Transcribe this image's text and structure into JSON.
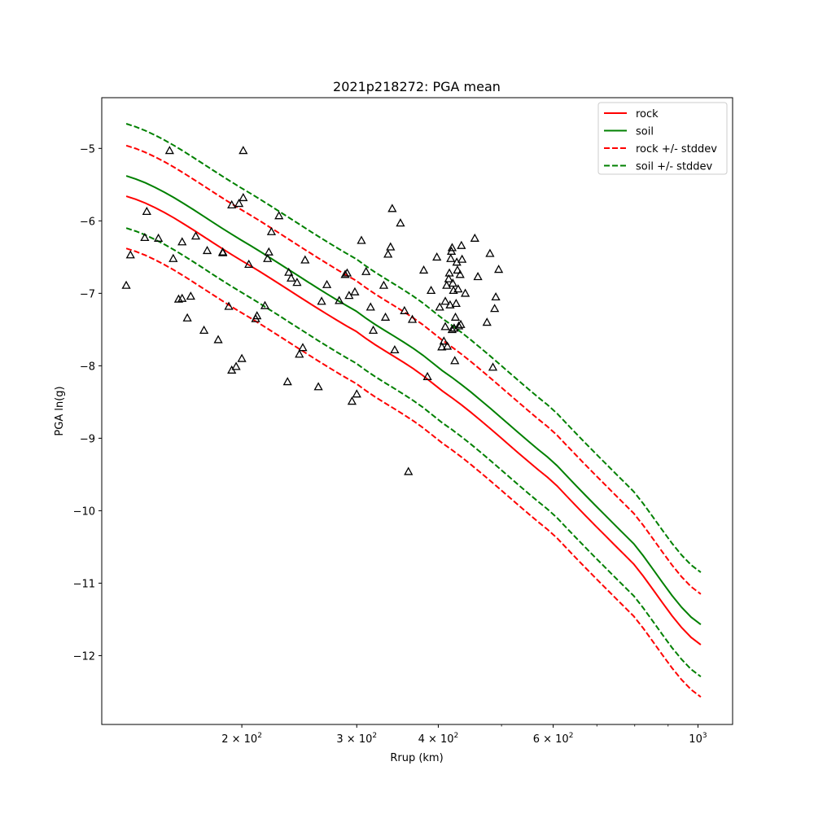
{
  "chart_data": {
    "type": "scatter",
    "title": "2021p218272: PGA mean",
    "xlabel": "Rrup (km)",
    "ylabel": "PGA ln(g)",
    "xscale": "log",
    "xlim": [
      122,
      1130
    ],
    "ylim": [
      -12.95,
      -4.3
    ],
    "x_ticks": [
      {
        "value": 200,
        "label": "2 × 10",
        "exp": "2"
      },
      {
        "value": 300,
        "label": "3 × 10",
        "exp": "2"
      },
      {
        "value": 400,
        "label": "4 × 10",
        "exp": "2"
      },
      {
        "value": 600,
        "label": "6 × 10",
        "exp": "2"
      },
      {
        "value": 1000,
        "label": "10",
        "exp": "3"
      }
    ],
    "x_minor_ticks": [
      500,
      700,
      800,
      900
    ],
    "y_ticks": [
      {
        "value": -5,
        "label": "−5"
      },
      {
        "value": -6,
        "label": "−6"
      },
      {
        "value": -7,
        "label": "−7"
      },
      {
        "value": -8,
        "label": "−8"
      },
      {
        "value": -9,
        "label": "−9"
      },
      {
        "value": -10,
        "label": "−10"
      },
      {
        "value": -11,
        "label": "−11"
      },
      {
        "value": -12,
        "label": "−12"
      }
    ],
    "grid": false,
    "legend_position": "top-right",
    "series": [
      {
        "name": "rock",
        "kind": "line",
        "color": "#ff0000",
        "dashed": false,
        "x": [
          133,
          200,
          300,
          400,
          600,
          800,
          1010
        ],
        "y": [
          -5.66,
          -6.55,
          -7.53,
          -8.31,
          -9.6,
          -10.75,
          -11.85
        ]
      },
      {
        "name": "soil",
        "kind": "line",
        "color": "#008000",
        "dashed": false,
        "x": [
          133,
          200,
          300,
          400,
          600,
          800,
          1010
        ],
        "y": [
          -5.38,
          -6.27,
          -7.25,
          -8.03,
          -9.32,
          -10.47,
          -11.57
        ]
      },
      {
        "name": "rock +/- stddev",
        "kind": "band",
        "color": "#ff0000",
        "dashed": true,
        "x": [
          133,
          200,
          300,
          400,
          600,
          800,
          1010
        ],
        "upper": [
          -4.96,
          -5.85,
          -6.83,
          -7.61,
          -8.9,
          -10.05,
          -11.15
        ],
        "lower": [
          -6.38,
          -7.27,
          -8.25,
          -9.03,
          -10.32,
          -11.47,
          -12.57
        ]
      },
      {
        "name": "soil +/- stddev",
        "kind": "band",
        "color": "#008000",
        "dashed": true,
        "x": [
          133,
          200,
          300,
          400,
          600,
          800,
          1010
        ],
        "upper": [
          -4.66,
          -5.55,
          -6.53,
          -7.31,
          -8.6,
          -9.75,
          -10.85
        ],
        "lower": [
          -6.1,
          -6.99,
          -7.97,
          -8.75,
          -10.04,
          -11.19,
          -12.29
        ]
      }
    ],
    "points": {
      "marker": "triangle",
      "color": "#000000",
      "x": [
        133,
        135,
        142,
        143,
        149,
        155,
        157,
        160,
        162,
        162,
        165,
        167,
        170,
        175,
        177,
        184,
        187,
        187,
        191,
        193,
        193,
        196,
        198,
        200,
        201,
        201,
        205,
        210,
        211,
        217,
        219,
        220,
        222,
        228,
        235,
        236,
        238,
        243,
        245,
        248,
        250,
        262,
        265,
        270,
        282,
        288,
        290,
        292,
        295,
        298,
        300,
        305,
        310,
        315,
        318,
        330,
        332,
        335,
        338,
        340,
        343,
        350,
        355,
        360,
        365,
        380,
        385,
        390,
        398,
        402,
        405,
        408,
        410,
        410,
        412,
        413,
        415,
        416,
        417,
        418,
        419,
        420,
        420,
        421,
        422,
        423,
        424,
        425,
        426,
        427,
        428,
        429,
        430,
        432,
        433,
        434,
        435,
        440,
        455,
        460,
        475,
        480,
        485,
        488,
        490,
        495
      ],
      "y": [
        -6.89,
        -6.47,
        -6.23,
        -5.87,
        -6.24,
        -5.03,
        -6.52,
        -7.08,
        -7.07,
        -6.29,
        -7.34,
        -7.04,
        -6.21,
        -7.51,
        -6.41,
        -7.64,
        -6.44,
        -6.43,
        -7.18,
        -5.78,
        -8.06,
        -8.01,
        -5.76,
        -7.9,
        -5.03,
        -5.68,
        -6.6,
        -7.35,
        -7.31,
        -7.17,
        -6.52,
        -6.43,
        -6.15,
        -5.93,
        -8.22,
        -6.71,
        -6.79,
        -6.85,
        -7.84,
        -7.75,
        -6.54,
        -8.29,
        -7.11,
        -6.88,
        -7.1,
        -6.74,
        -6.72,
        -7.03,
        -8.49,
        -6.98,
        -8.39,
        -6.27,
        -6.7,
        -7.19,
        -7.51,
        -6.89,
        -7.33,
        -6.46,
        -6.36,
        -5.83,
        -7.78,
        -6.03,
        -7.24,
        -9.46,
        -7.36,
        -6.68,
        -8.15,
        -6.96,
        -6.5,
        -7.19,
        -7.74,
        -7.66,
        -7.46,
        -7.11,
        -6.89,
        -7.73,
        -6.8,
        -6.72,
        -7.16,
        -6.52,
        -6.42,
        -7.5,
        -6.37,
        -6.86,
        -6.96,
        -7.48,
        -7.93,
        -7.33,
        -7.14,
        -6.57,
        -6.68,
        -6.94,
        -7.45,
        -6.74,
        -7.43,
        -6.34,
        -6.53,
        -7.0,
        -6.24,
        -6.77,
        -7.4,
        -6.45,
        -8.02,
        -7.21,
        -7.05,
        -6.67
      ]
    }
  }
}
